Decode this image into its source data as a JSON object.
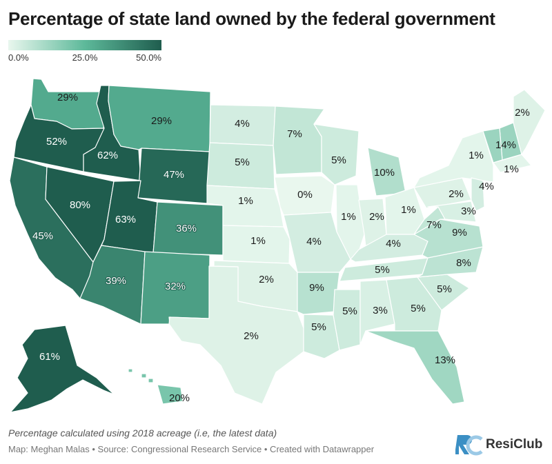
{
  "title": "Percentage of state land owned by the federal government",
  "legend": {
    "min": "0.0%",
    "mid": "25.0%",
    "max": "50.0%",
    "colors": [
      "#e9f7ee",
      "#5db99a",
      "#1f5d4e"
    ]
  },
  "footnote": "Percentage calculated using 2018 acreage (i.e, the latest data)",
  "credits": "Map: Meghan Malas • Source: Congressional Research Service • Created with Datawrapper",
  "brand": {
    "name": "ResiClub",
    "logo_text": "RC",
    "logo_color": "#3b8fc4"
  },
  "states": [
    {
      "id": "WA",
      "value": 29,
      "label": "29%"
    },
    {
      "id": "OR",
      "value": 52,
      "label": "52%"
    },
    {
      "id": "CA",
      "value": 45,
      "label": "45%"
    },
    {
      "id": "ID",
      "value": 62,
      "label": "62%"
    },
    {
      "id": "NV",
      "value": 80,
      "label": "80%"
    },
    {
      "id": "MT",
      "value": 29,
      "label": "29%"
    },
    {
      "id": "WY",
      "value": 47,
      "label": "47%"
    },
    {
      "id": "UT",
      "value": 63,
      "label": "63%"
    },
    {
      "id": "CO",
      "value": 36,
      "label": "36%"
    },
    {
      "id": "AZ",
      "value": 39,
      "label": "39%"
    },
    {
      "id": "NM",
      "value": 32,
      "label": "32%"
    },
    {
      "id": "ND",
      "value": 4,
      "label": "4%"
    },
    {
      "id": "SD",
      "value": 5,
      "label": "5%"
    },
    {
      "id": "NE",
      "value": 1,
      "label": "1%"
    },
    {
      "id": "KS",
      "value": 1,
      "label": "1%"
    },
    {
      "id": "OK",
      "value": 2,
      "label": "2%"
    },
    {
      "id": "TX",
      "value": 2,
      "label": "2%"
    },
    {
      "id": "MN",
      "value": 7,
      "label": "7%"
    },
    {
      "id": "IA",
      "value": 0,
      "label": "0%"
    },
    {
      "id": "MO",
      "value": 4,
      "label": "4%"
    },
    {
      "id": "AR",
      "value": 9,
      "label": "9%"
    },
    {
      "id": "LA",
      "value": 5,
      "label": "5%"
    },
    {
      "id": "WI",
      "value": 5,
      "label": "5%"
    },
    {
      "id": "IL",
      "value": 1,
      "label": "1%"
    },
    {
      "id": "MS",
      "value": 5,
      "label": "5%"
    },
    {
      "id": "MI",
      "value": 10,
      "label": "10%"
    },
    {
      "id": "IN",
      "value": 2,
      "label": "2%"
    },
    {
      "id": "OH",
      "value": 1,
      "label": "1%"
    },
    {
      "id": "KY",
      "value": 4,
      "label": "4%"
    },
    {
      "id": "TN",
      "value": 5,
      "label": "5%"
    },
    {
      "id": "AL",
      "value": 3,
      "label": "3%"
    },
    {
      "id": "GA",
      "value": 5,
      "label": "5%"
    },
    {
      "id": "FL",
      "value": 13,
      "label": "13%"
    },
    {
      "id": "SC",
      "value": 5,
      "label": "5%"
    },
    {
      "id": "NC",
      "value": 8,
      "label": "8%"
    },
    {
      "id": "VA",
      "value": 9,
      "label": "9%"
    },
    {
      "id": "WV",
      "value": 7,
      "label": "7%"
    },
    {
      "id": "PA",
      "value": 2,
      "label": "2%"
    },
    {
      "id": "NY",
      "value": 1,
      "label": "1%"
    },
    {
      "id": "MD",
      "value": 3,
      "label": "3%"
    },
    {
      "id": "NJ",
      "value": 4,
      "label": "4%"
    },
    {
      "id": "NH",
      "value": 14,
      "label": "14%"
    },
    {
      "id": "VT",
      "value": 14,
      "label": ""
    },
    {
      "id": "MA",
      "value": 1,
      "label": "1%"
    },
    {
      "id": "ME",
      "value": 2,
      "label": "2%"
    },
    {
      "id": "AK",
      "value": 61,
      "label": "61%"
    },
    {
      "id": "HI",
      "value": 20,
      "label": "20%"
    }
  ]
}
